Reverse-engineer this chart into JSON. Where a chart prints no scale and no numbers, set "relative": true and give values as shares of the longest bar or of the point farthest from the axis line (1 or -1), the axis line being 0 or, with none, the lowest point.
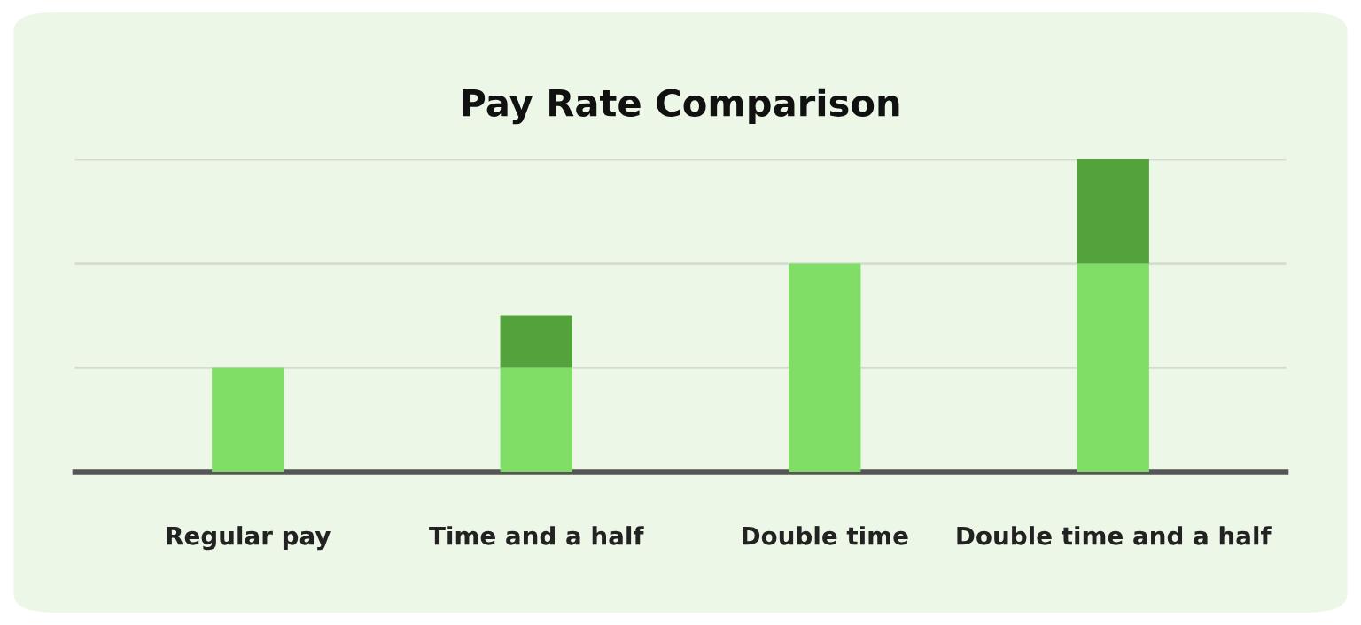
{
  "chart_data": {
    "type": "bar",
    "title": "Pay Rate Comparison",
    "relative": true,
    "stacked": true,
    "categories": [
      "Regular pay",
      "Time and a half",
      "Double time",
      "Double time and a half"
    ],
    "series": [
      {
        "color": "#80dd66",
        "values": [
          0.333,
          0.333,
          0.667,
          0.667
        ]
      },
      {
        "color": "#52a33c",
        "values": [
          0,
          0.167,
          0,
          0.333
        ]
      }
    ],
    "ref_lines": [
      {
        "axis": "y",
        "value": 0.333,
        "color": "#d5ddd2"
      },
      {
        "axis": "y",
        "value": 0.667,
        "color": "#d5ddd2"
      },
      {
        "axis": "y",
        "value": 1,
        "color": "#d5ddd2"
      }
    ]
  }
}
